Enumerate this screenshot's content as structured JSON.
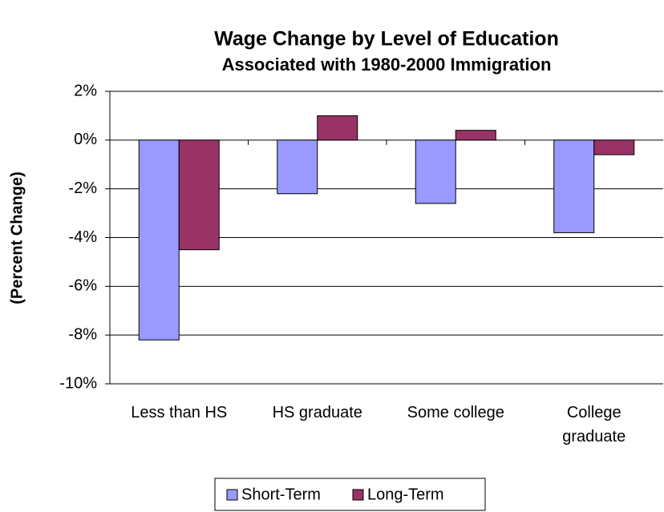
{
  "chart_data": {
    "type": "bar",
    "title": "Wage Change by Level of Education",
    "subtitle": "Associated with 1980-2000 Immigration",
    "y_label": "(Percent Change)",
    "categories": [
      "Less than HS",
      "HS graduate",
      "Some college",
      "College graduate"
    ],
    "series": [
      {
        "name": "Short-Term",
        "color": "#9999ff",
        "values": [
          -8.2,
          -2.2,
          -2.6,
          -3.8
        ]
      },
      {
        "name": "Long-Term",
        "color": "#993366",
        "values": [
          -4.5,
          1.0,
          0.4,
          -0.6
        ]
      }
    ],
    "ylim": [
      -10,
      2
    ],
    "yticks": [
      {
        "value": 2,
        "label": "2%"
      },
      {
        "value": 0,
        "label": "0%"
      },
      {
        "value": -2,
        "label": "-2%"
      },
      {
        "value": -4,
        "label": "-4%"
      },
      {
        "value": -6,
        "label": "-6%"
      },
      {
        "value": -8,
        "label": "-8%"
      },
      {
        "value": -10,
        "label": "-10%"
      }
    ],
    "grid": true,
    "legend": "bottom"
  }
}
